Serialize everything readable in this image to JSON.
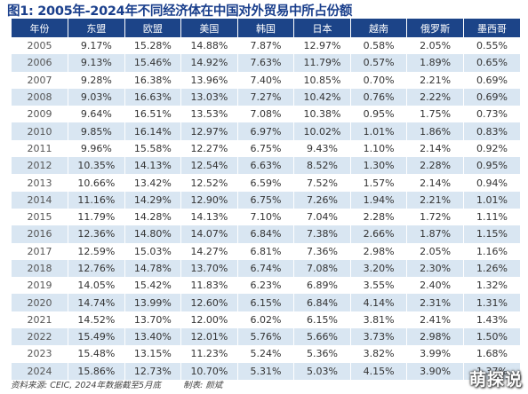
{
  "title": "图1: 2005年-2024年不同经济体在中国对外贸易中所占份额",
  "table": {
    "headers": [
      "年份",
      "东盟",
      "欧盟",
      "美国",
      "韩国",
      "日本",
      "越南",
      "俄罗斯",
      "墨西哥"
    ],
    "rows": [
      [
        "2005",
        "9.17%",
        "15.28%",
        "14.88%",
        "7.87%",
        "12.97%",
        "0.58%",
        "2.05%",
        "0.55%"
      ],
      [
        "2006",
        "9.13%",
        "15.46%",
        "14.92%",
        "7.63%",
        "11.79%",
        "0.57%",
        "1.89%",
        "0.65%"
      ],
      [
        "2007",
        "9.28%",
        "16.38%",
        "13.96%",
        "7.40%",
        "10.85%",
        "0.70%",
        "2.21%",
        "0.69%"
      ],
      [
        "2008",
        "9.03%",
        "16.63%",
        "13.03%",
        "7.27%",
        "10.42%",
        "0.76%",
        "2.22%",
        "0.69%"
      ],
      [
        "2009",
        "9.64%",
        "16.51%",
        "13.53%",
        "7.08%",
        "10.38%",
        "0.95%",
        "1.75%",
        "0.73%"
      ],
      [
        "2010",
        "9.85%",
        "16.14%",
        "12.97%",
        "6.97%",
        "10.02%",
        "1.01%",
        "1.86%",
        "0.83%"
      ],
      [
        "2011",
        "9.96%",
        "15.58%",
        "12.27%",
        "6.75%",
        "9.43%",
        "1.10%",
        "2.14%",
        "0.92%"
      ],
      [
        "2012",
        "10.35%",
        "14.13%",
        "12.54%",
        "6.63%",
        "8.52%",
        "1.30%",
        "2.28%",
        "0.95%"
      ],
      [
        "2013",
        "10.66%",
        "13.42%",
        "12.52%",
        "6.59%",
        "7.52%",
        "1.57%",
        "2.14%",
        "0.94%"
      ],
      [
        "2014",
        "11.16%",
        "14.29%",
        "12.90%",
        "6.75%",
        "7.26%",
        "1.94%",
        "2.21%",
        "1.01%"
      ],
      [
        "2015",
        "11.79%",
        "14.28%",
        "14.13%",
        "7.10%",
        "7.04%",
        "2.28%",
        "1.72%",
        "1.11%"
      ],
      [
        "2016",
        "12.36%",
        "14.80%",
        "14.07%",
        "6.84%",
        "7.38%",
        "2.66%",
        "1.87%",
        "1.15%"
      ],
      [
        "2017",
        "12.59%",
        "15.03%",
        "14.27%",
        "6.81%",
        "7.36%",
        "2.98%",
        "2.05%",
        "1.16%"
      ],
      [
        "2018",
        "12.76%",
        "14.78%",
        "13.70%",
        "6.74%",
        "7.08%",
        "3.20%",
        "2.30%",
        "1.26%"
      ],
      [
        "2019",
        "14.05%",
        "15.42%",
        "11.83%",
        "6.23%",
        "6.89%",
        "3.55%",
        "2.40%",
        "1.32%"
      ],
      [
        "2020",
        "14.74%",
        "13.99%",
        "12.60%",
        "6.15%",
        "6.84%",
        "4.14%",
        "2.31%",
        "1.31%"
      ],
      [
        "2021",
        "14.52%",
        "13.70%",
        "12.00%",
        "6.02%",
        "6.15%",
        "3.81%",
        "2.41%",
        "1.43%"
      ],
      [
        "2022",
        "15.49%",
        "13.40%",
        "12.01%",
        "5.76%",
        "5.66%",
        "3.73%",
        "2.98%",
        "1.50%"
      ],
      [
        "2023",
        "15.48%",
        "13.15%",
        "11.23%",
        "5.24%",
        "5.36%",
        "3.82%",
        "3.99%",
        "1.68%"
      ],
      [
        "2024",
        "15.86%",
        "12.73%",
        "10.70%",
        "5.31%",
        "5.03%",
        "4.15%",
        "3.90%",
        "1.37%"
      ]
    ]
  },
  "footer": {
    "source": "资料来源: CEIC, 2024年数据截至5月底",
    "author": "制表: 颜斌"
  },
  "watermark": "萌探说"
}
